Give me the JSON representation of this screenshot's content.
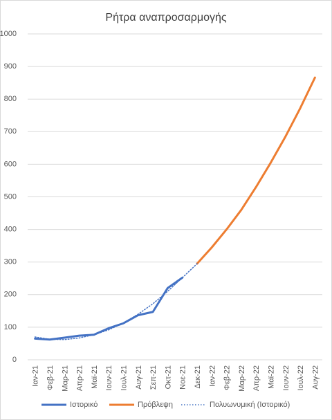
{
  "chart_data": {
    "type": "line",
    "title": "Ρήτρα αναπροσαρμογής",
    "categories": [
      "Ιαν-21",
      "Φεβ-21",
      "Μαρ-21",
      "Απρ-21",
      "Μαϊ-21",
      "Ιουν-21",
      "Ιουλ-21",
      "Αυγ-21",
      "Σεπ-21",
      "Οκτ-21",
      "Νοε-21",
      "Δεκ-21",
      "Ιαν-22",
      "Φεβ-22",
      "Μαρ-22",
      "Απρ-22",
      "Μαϊ-22",
      "Ιουν-22",
      "Ιουλ-22",
      "Αυγ-22"
    ],
    "series": [
      {
        "name": "Ιστορικό",
        "color": "#4472c4",
        "style": "solid",
        "values": [
          65,
          62,
          68,
          74,
          77,
          97,
          112,
          137,
          147,
          220,
          252,
          null,
          null,
          null,
          null,
          null,
          null,
          null,
          null,
          null
        ]
      },
      {
        "name": "Πρόβλεψη",
        "color": "#ed7d31",
        "style": "solid",
        "values": [
          null,
          null,
          null,
          null,
          null,
          null,
          null,
          null,
          null,
          null,
          null,
          295,
          345,
          400,
          460,
          530,
          605,
          685,
          772,
          866
        ]
      },
      {
        "name": "Πολυωνυμική (Ιστορικό)",
        "color": "#4472c4",
        "style": "dotted",
        "values": [
          70,
          63,
          62,
          67,
          77,
          92,
          113,
          140,
          172,
          210,
          252,
          295,
          null,
          null,
          null,
          null,
          null,
          null,
          null,
          null
        ]
      }
    ],
    "ylim": [
      0,
      1000
    ],
    "yticks": [
      0,
      100,
      200,
      300,
      400,
      500,
      600,
      700,
      800,
      900,
      1000
    ],
    "grid": true,
    "legend": "bottom"
  }
}
